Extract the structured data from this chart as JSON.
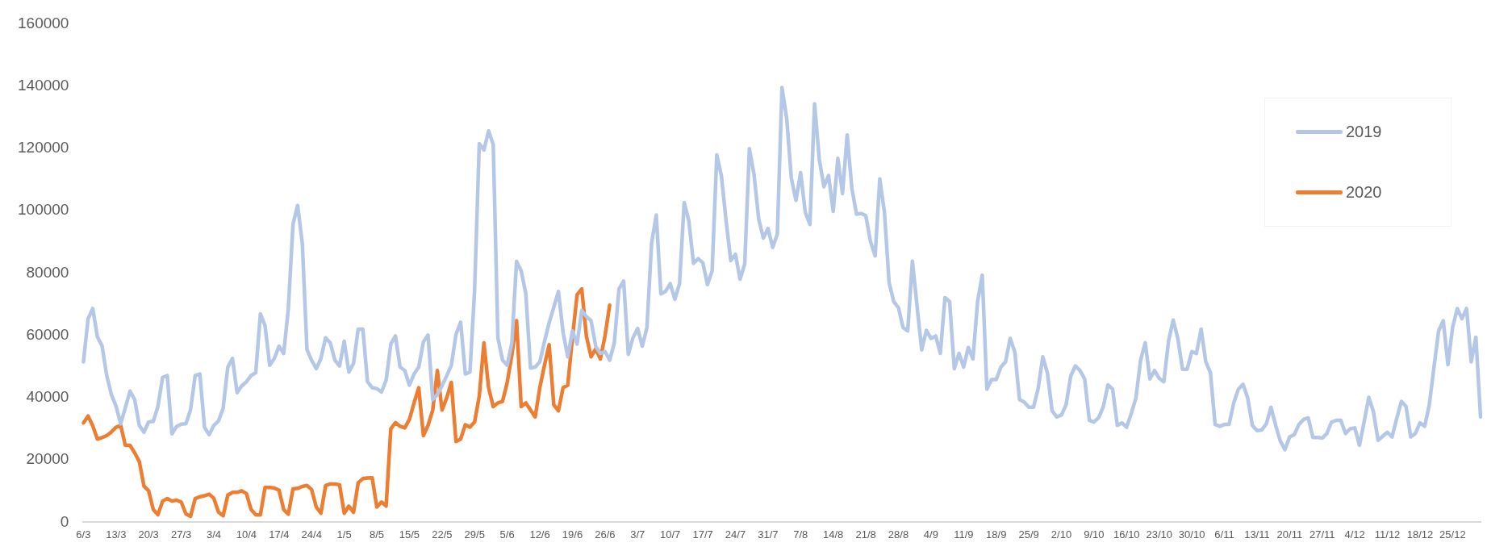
{
  "chart_data": {
    "type": "line",
    "categories": [
      "6/3",
      null,
      null,
      null,
      null,
      null,
      null,
      "13/3",
      null,
      null,
      null,
      null,
      null,
      null,
      "20/3",
      null,
      null,
      null,
      null,
      null,
      null,
      "27/3",
      null,
      null,
      null,
      null,
      null,
      null,
      "3/4",
      null,
      null,
      null,
      null,
      null,
      null,
      "10/4",
      null,
      null,
      null,
      null,
      null,
      null,
      "17/4",
      null,
      null,
      null,
      null,
      null,
      null,
      "24/4",
      null,
      null,
      null,
      null,
      null,
      null,
      "1/5",
      null,
      null,
      null,
      null,
      null,
      null,
      "8/5",
      null,
      null,
      null,
      null,
      null,
      null,
      "15/5",
      null,
      null,
      null,
      null,
      null,
      null,
      "22/5",
      null,
      null,
      null,
      null,
      null,
      null,
      "29/5",
      null,
      null,
      null,
      null,
      null,
      null,
      "5/6",
      null,
      null,
      null,
      null,
      null,
      null,
      "12/6",
      null,
      null,
      null,
      null,
      null,
      null,
      "19/6",
      null,
      null,
      null,
      null,
      null,
      null,
      "26/6",
      null,
      null,
      null,
      null,
      null,
      null,
      "3/7",
      null,
      null,
      null,
      null,
      null,
      null,
      "10/7",
      null,
      null,
      null,
      null,
      null,
      null,
      "17/7",
      null,
      null,
      null,
      null,
      null,
      null,
      "24/7",
      null,
      null,
      null,
      null,
      null,
      null,
      "31/7",
      null,
      null,
      null,
      null,
      null,
      null,
      "7/8",
      null,
      null,
      null,
      null,
      null,
      null,
      "14/8",
      null,
      null,
      null,
      null,
      null,
      null,
      "21/8",
      null,
      null,
      null,
      null,
      null,
      null,
      "28/8",
      null,
      null,
      null,
      null,
      null,
      null,
      "4/9",
      null,
      null,
      null,
      null,
      null,
      null,
      "11/9",
      null,
      null,
      null,
      null,
      null,
      null,
      "18/9",
      null,
      null,
      null,
      null,
      null,
      null,
      "25/9",
      null,
      null,
      null,
      null,
      null,
      null,
      "2/10",
      null,
      null,
      null,
      null,
      null,
      null,
      "9/10",
      null,
      null,
      null,
      null,
      null,
      null,
      "16/10",
      null,
      null,
      null,
      null,
      null,
      null,
      "23/10",
      null,
      null,
      null,
      null,
      null,
      null,
      "30/10",
      null,
      null,
      null,
      null,
      null,
      null,
      "6/11",
      null,
      null,
      null,
      null,
      null,
      null,
      "13/11",
      null,
      null,
      null,
      null,
      null,
      null,
      "20/11",
      null,
      null,
      null,
      null,
      null,
      null,
      "27/11",
      null,
      null,
      null,
      null,
      null,
      null,
      "4/12",
      null,
      null,
      null,
      null,
      null,
      null,
      "11/12",
      null,
      null,
      null,
      null,
      null,
      null,
      "18/12",
      null,
      null,
      null,
      null,
      null,
      null,
      "25/12",
      null,
      null,
      null,
      null,
      null,
      null
    ],
    "series": [
      {
        "name": "2019",
        "color": "#b4c7e7",
        "values": [
          51500,
          65300,
          68600,
          59500,
          56600,
          47100,
          41000,
          37300,
          31600,
          36800,
          42100,
          39400,
          31100,
          28900,
          32200,
          32400,
          37200,
          46500,
          47100,
          28400,
          30700,
          31500,
          31600,
          36100,
          47100,
          47600,
          30500,
          28100,
          31100,
          32500,
          36600,
          49800,
          52600,
          41600,
          43800,
          45100,
          47100,
          48000,
          66900,
          63100,
          50400,
          52600,
          56500,
          54200,
          68600,
          95600,
          101700,
          89500,
          55400,
          52000,
          49300,
          52600,
          59200,
          57600,
          52000,
          50200,
          58100,
          48200,
          51000,
          62000,
          62000,
          45100,
          43200,
          42900,
          41800,
          45600,
          57200,
          59800,
          49800,
          48700,
          44000,
          47600,
          49800,
          57900,
          60100,
          39400,
          41000,
          43800,
          47000,
          50400,
          60300,
          64200,
          47600,
          48200,
          74700,
          121500,
          119500,
          125600,
          121200,
          59200,
          52000,
          50400,
          57600,
          83700,
          80700,
          73300,
          49500,
          49800,
          51500,
          58000,
          64000,
          69000,
          74100,
          60900,
          53100,
          61400,
          57200,
          68000,
          66000,
          64700,
          56500,
          54200,
          54800,
          52000,
          57600,
          74900,
          77400,
          53900,
          59200,
          62200,
          56500,
          62500,
          89500,
          98600,
          73300,
          74100,
          76600,
          71600,
          76600,
          102600,
          96700,
          83100,
          84600,
          83300,
          76300,
          80700,
          117900,
          111100,
          96700,
          84000,
          86000,
          78000,
          82900,
          119900,
          111600,
          97300,
          91200,
          94300,
          88200,
          92500,
          139500,
          129800,
          110500,
          103300,
          112200,
          99500,
          95600,
          134300,
          116600,
          107700,
          111300,
          99800,
          116800,
          105500,
          124300,
          107200,
          98900,
          99100,
          98400,
          90100,
          85500,
          110200,
          99500,
          76900,
          70800,
          68900,
          62500,
          61400,
          83800,
          69400,
          55300,
          61600,
          59000,
          59800,
          54200,
          72100,
          70800,
          49300,
          54200,
          49800,
          56100,
          52400,
          70800,
          79300,
          42700,
          45800,
          45800,
          49800,
          51500,
          59000,
          54600,
          39400,
          38600,
          36900,
          36900,
          42900,
          53100,
          47900,
          35800,
          33800,
          34400,
          37700,
          46900,
          50200,
          48700,
          46000,
          32700,
          32200,
          33600,
          37100,
          44100,
          42700,
          31100,
          31900,
          30500,
          34900,
          39900,
          52000,
          57600,
          46000,
          48700,
          46200,
          45100,
          58100,
          64900,
          59000,
          49100,
          49100,
          54800,
          54200,
          62000,
          51500,
          48000,
          31400,
          30800,
          31400,
          31400,
          38300,
          42700,
          44300,
          39900,
          31100,
          29400,
          29600,
          31600,
          36900,
          31100,
          26100,
          23300,
          27400,
          28100,
          31400,
          33000,
          33500,
          27200,
          27200,
          27000,
          28500,
          32200,
          32700,
          32700,
          28500,
          30000,
          30300,
          24700,
          32200,
          40100,
          35500,
          26300,
          27600,
          28900,
          27400,
          33300,
          38800,
          37200,
          27400,
          28500,
          31900,
          30800,
          37700,
          49800,
          61400,
          64700,
          50600,
          62500,
          68600,
          65300,
          68600,
          51500,
          59400,
          33800
        ]
      },
      {
        "name": "2020",
        "color": "#ed7d31",
        "values": [
          31900,
          34100,
          31000,
          26700,
          27200,
          27800,
          29000,
          30500,
          31100,
          24700,
          24700,
          22300,
          19500,
          11600,
          10100,
          4100,
          2400,
          6800,
          7600,
          6800,
          7100,
          6500,
          2700,
          1900,
          7600,
          8200,
          8500,
          9000,
          7700,
          3300,
          2100,
          8700,
          9600,
          9600,
          10100,
          9200,
          4100,
          2400,
          2400,
          11200,
          11200,
          11000,
          10300,
          4100,
          2600,
          10700,
          10900,
          11500,
          11800,
          10500,
          4900,
          2900,
          11800,
          12300,
          12300,
          12000,
          2900,
          5200,
          3200,
          12700,
          14000,
          14200,
          14300,
          4900,
          6500,
          5200,
          30000,
          32000,
          30800,
          30300,
          33000,
          38300,
          43200,
          27800,
          31100,
          36000,
          48700,
          36000,
          39900,
          44900,
          25900,
          26700,
          31300,
          30500,
          32200,
          40500,
          57600,
          43200,
          37100,
          38300,
          38800,
          44900,
          53700,
          64700,
          37100,
          38300,
          36000,
          33800,
          43200,
          50400,
          57000,
          37700,
          35800,
          43200,
          44000,
          59200,
          73000,
          74900,
          59800,
          53100,
          55700,
          52400,
          59800,
          69700,
          null,
          null,
          null,
          null,
          null,
          null,
          null,
          null,
          null,
          null,
          null,
          null,
          null,
          null,
          null,
          null,
          null,
          null,
          null,
          null,
          null,
          null,
          null,
          null,
          null,
          null,
          null,
          null,
          null,
          null,
          null,
          null,
          null,
          null,
          null,
          null,
          null,
          null,
          null,
          null,
          null,
          null,
          null,
          null,
          null,
          null,
          null,
          null,
          null,
          null,
          null,
          null,
          null,
          null,
          null,
          null,
          null,
          null,
          null,
          null,
          null,
          null,
          null,
          null,
          null,
          null,
          null,
          null,
          null,
          null,
          null,
          null,
          null,
          null,
          null,
          null,
          null,
          null,
          null,
          null,
          null,
          null,
          null,
          null,
          null,
          null,
          null,
          null,
          null,
          null,
          null,
          null,
          null,
          null,
          null,
          null,
          null,
          null,
          null,
          null,
          null,
          null,
          null,
          null,
          null,
          null,
          null,
          null,
          null,
          null,
          null,
          null,
          null,
          null,
          null,
          null,
          null,
          null,
          null,
          null,
          null,
          null,
          null,
          null,
          null,
          null,
          null,
          null,
          null,
          null,
          null,
          null,
          null,
          null,
          null,
          null,
          null,
          null,
          null,
          null,
          null,
          null,
          null,
          null,
          null,
          null,
          null,
          null,
          null,
          null,
          null,
          null,
          null,
          null,
          null,
          null,
          null,
          null,
          null,
          null,
          null,
          null,
          null,
          null,
          null,
          null,
          null,
          null,
          null,
          null,
          null,
          null,
          null,
          null,
          null,
          null,
          null,
          null,
          null,
          null,
          null,
          null,
          null,
          null,
          null,
          null,
          null
        ]
      }
    ],
    "ylim": [
      0,
      160000
    ],
    "yticks": [
      0,
      20000,
      40000,
      60000,
      80000,
      100000,
      120000,
      140000,
      160000
    ],
    "grid": false,
    "legend": "right"
  }
}
